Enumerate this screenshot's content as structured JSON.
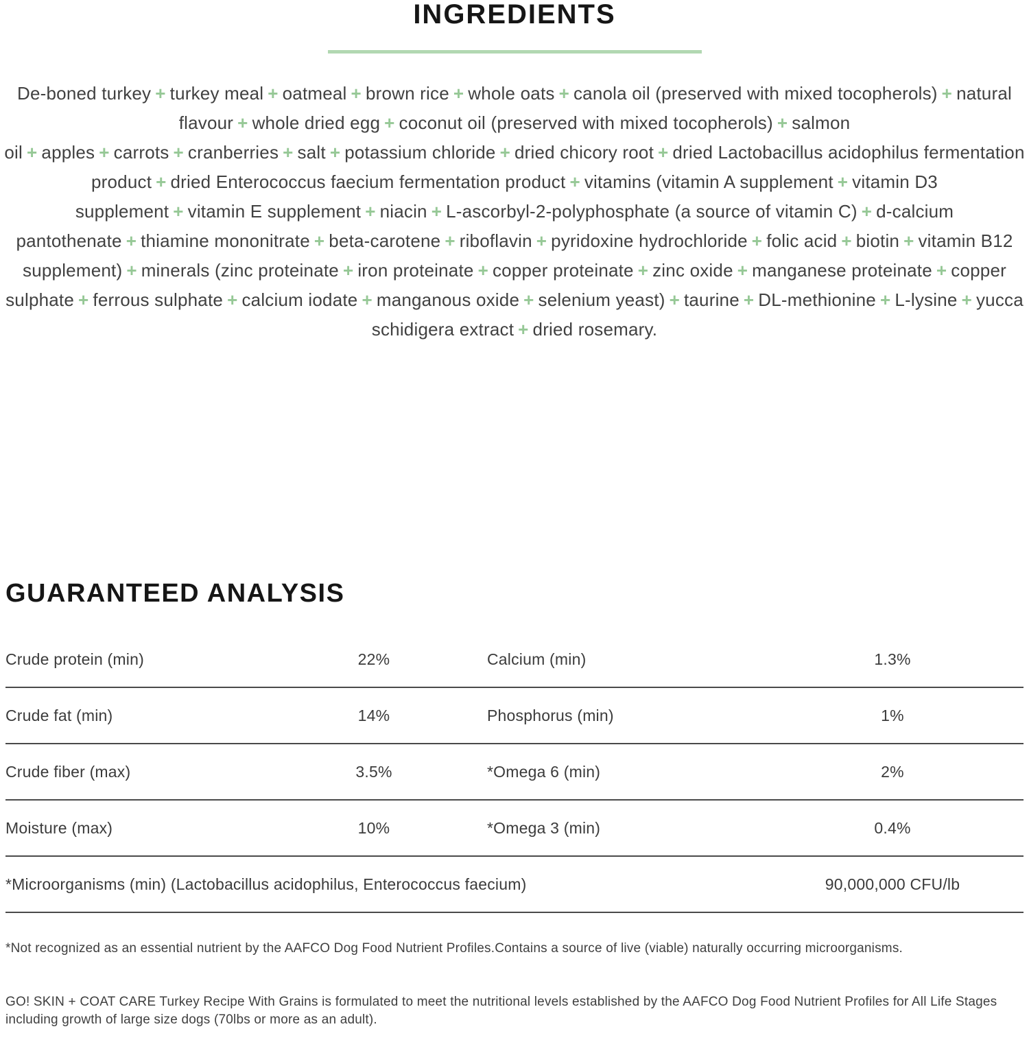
{
  "ingredients_section": {
    "title": "INGREDIENTS",
    "separator": "+",
    "items": [
      "De-boned turkey",
      "turkey meal",
      "oatmeal",
      "brown rice",
      "whole oats",
      "canola oil (preserved with mixed tocopherols)",
      "natural flavour",
      "whole dried egg",
      "coconut oil (preserved with mixed tocopherols)",
      "salmon oil",
      "apples",
      "carrots",
      "cranberries",
      "salt",
      "potassium chloride",
      "dried chicory root",
      "dried Lactobacillus acidophilus fermentation product",
      "dried Enterococcus faecium fermentation product",
      "vitamins (vitamin A supplement",
      "vitamin D3 supplement",
      "vitamin E supplement",
      "niacin",
      "L-ascorbyl-2-polyphosphate (a source of vitamin C)",
      "d-calcium pantothenate",
      "thiamine mononitrate",
      "beta-carotene",
      "riboflavin",
      "pyridoxine hydrochloride",
      "folic acid",
      "biotin",
      "vitamin B12 supplement)",
      "minerals (zinc proteinate",
      "iron proteinate",
      "copper proteinate",
      "zinc oxide",
      "manganese proteinate",
      "copper sulphate",
      "ferrous sulphate",
      "calcium iodate",
      "manganous oxide",
      "selenium yeast)",
      "taurine",
      "DL-methionine",
      "L-lysine",
      "yucca schidigera extract",
      "dried rosemary."
    ]
  },
  "analysis_section": {
    "title": "GUARANTEED ANALYSIS",
    "rows": [
      {
        "left_label": "Crude protein (min)",
        "left_value": "22%",
        "right_label": "Calcium (min)",
        "right_value": "1.3%"
      },
      {
        "left_label": "Crude fat (min)",
        "left_value": "14%",
        "right_label": "Phosphorus (min)",
        "right_value": "1%"
      },
      {
        "left_label": "Crude fiber (max)",
        "left_value": "3.5%",
        "right_label": "*Omega 6 (min)",
        "right_value": "2%"
      },
      {
        "left_label": "Moisture (max)",
        "left_value": "10%",
        "right_label": "*Omega 3 (min)",
        "right_value": "0.4%"
      }
    ],
    "wide_row": {
      "label": "*Microorganisms (min) (Lactobacillus acidophilus, Enterococcus faecium)",
      "value": "90,000,000 CFU/lb"
    }
  },
  "footnotes": {
    "aafco_note": "*Not recognized as an essential nutrient by the AAFCO Dog Food Nutrient Profiles.Contains a source of live (viable) naturally occurring microorganisms.",
    "formulation_note": "GO! SKIN + COAT CARE Turkey Recipe With Grains is formulated to meet the nutritional levels established by the AAFCO Dog Food Nutrient Profiles for All Life Stages including growth of large size dogs (70lbs or more as an adult)."
  },
  "colors": {
    "accent_green": "#96c896",
    "divider_green": "#b2d8b2",
    "heading_black": "#161616",
    "body_text": "#3f3f3f",
    "table_line": "#4a4a4a"
  }
}
